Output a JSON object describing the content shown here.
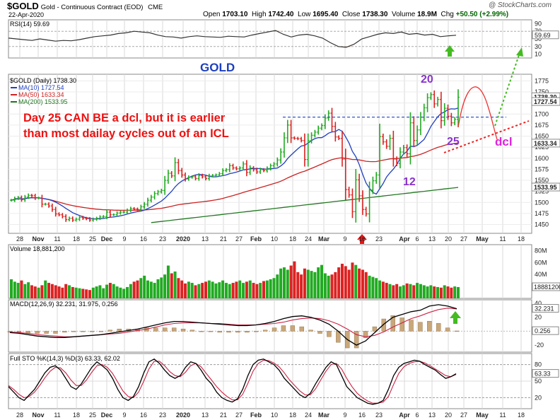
{
  "header": {
    "symbol": "$GOLD",
    "description": "Gold - Continuous Contract (EOD)",
    "exchange": "CME",
    "date": "22-Apr-2020",
    "open_label": "Open",
    "open": "1703.10",
    "high_label": "High",
    "high": "1742.40",
    "low_label": "Low",
    "low": "1695.40",
    "close_label": "Close",
    "close": "1738.30",
    "volume_label": "Volume",
    "volume": "18.9M",
    "chg_label": "Chg",
    "chg": "+50.50 (+2.99%)",
    "brand": "@ StockCharts.com"
  },
  "colors": {
    "up_bar": "#22aa22",
    "down_bar": "#dd2222",
    "ma10": "#1f3fbf",
    "ma50": "#cc2222",
    "ma200": "#227722",
    "annotation_red": "#ee1111",
    "annotation_purple": "#8833cc",
    "annotation_magenta": "#dd22dd",
    "annotation_green": "#44bb22"
  },
  "chart_data": [
    {
      "type": "line",
      "title": "RSI(14) 59.69",
      "ylim": [
        0,
        100
      ],
      "yticks": [
        10,
        30,
        50,
        70,
        90
      ],
      "last_value": "59.69",
      "values": [
        52,
        50,
        48,
        46,
        50,
        47,
        44,
        46,
        45,
        48,
        52,
        56,
        58,
        60,
        64,
        66,
        70,
        68,
        66,
        60,
        56,
        55,
        52,
        56,
        58,
        56,
        55,
        54,
        57,
        56,
        55,
        60,
        64,
        68,
        72,
        62,
        55,
        60,
        62,
        58,
        52,
        40,
        30,
        28,
        36,
        50,
        56,
        62,
        66,
        64,
        68,
        62,
        64,
        60,
        62,
        56,
        58,
        59.69
      ]
    },
    {
      "type": "ohlc",
      "title": "$GOLD (Daily) 1738.30",
      "ylim": [
        1430,
        1790
      ],
      "yticks": [
        1450,
        1475,
        1500,
        1525,
        1550,
        1575,
        1600,
        1625,
        1650,
        1675,
        1700,
        1725,
        1750,
        1775
      ],
      "x_labels": [
        "28",
        "Nov",
        "11",
        "18",
        "25",
        "Dec",
        "9",
        "16",
        "23",
        "2020",
        "13",
        "21",
        "27",
        "Feb",
        "10",
        "18",
        "24",
        "Mar",
        "9",
        "16",
        "23",
        "Apr",
        "6",
        "13",
        "20",
        "27",
        "May",
        "11",
        "18"
      ],
      "closes": [
        1505,
        1509,
        1511,
        1506,
        1512,
        1516,
        1515,
        1510,
        1510,
        1496,
        1496,
        1492,
        1484,
        1474,
        1472,
        1468,
        1461,
        1464,
        1460,
        1462,
        1466,
        1464,
        1463,
        1460,
        1462,
        1464,
        1467,
        1468,
        1478,
        1472,
        1472,
        1476,
        1478,
        1478,
        1482,
        1486,
        1485,
        1484,
        1490,
        1496,
        1505,
        1512,
        1520,
        1524,
        1527,
        1550,
        1566,
        1560,
        1590,
        1572,
        1562,
        1553,
        1557,
        1558,
        1554,
        1561,
        1558,
        1554,
        1560,
        1561,
        1562,
        1565,
        1572,
        1574,
        1583,
        1578,
        1576,
        1578,
        1587,
        1568,
        1578,
        1574,
        1569,
        1574,
        1572,
        1577,
        1583,
        1587,
        1596,
        1614,
        1646,
        1675,
        1646,
        1645,
        1644,
        1640,
        1597,
        1640,
        1652,
        1659,
        1668,
        1674,
        1691,
        1702,
        1672,
        1648,
        1645,
        1598,
        1529,
        1517,
        1479,
        1551,
        1515,
        1484,
        1474,
        1528,
        1549,
        1562,
        1649,
        1637,
        1627,
        1645,
        1598,
        1588,
        1614,
        1624,
        1610,
        1680,
        1640,
        1664,
        1693,
        1714,
        1737,
        1744,
        1723,
        1733,
        1685,
        1713,
        1695,
        1680,
        1688,
        1738
      ],
      "legend": [
        {
          "name": "MA(10) 1727.54",
          "value": 1727.54
        },
        {
          "name": "MA(50) 1633.34",
          "value": 1633.34
        },
        {
          "name": "MA(200) 1533.95",
          "value": 1533.95
        }
      ],
      "price_label": "1738.30",
      "ma_labels": [
        "1727.54",
        "1633.34",
        "1533.95"
      ],
      "resistance": 1693,
      "annotations": {
        "gold": "GOLD",
        "note_line1": "Day 25 CAN BE a dcl, but it is earlier",
        "note_line2": "than most dailay cycles out of an ICL",
        "num20": "20",
        "num12": "12",
        "num25": "25",
        "dcl": "dcl"
      }
    },
    {
      "type": "bar",
      "title": "Volume 18,881,200",
      "ylim": [
        0,
        90
      ],
      "yticks_labels": [
        "20M",
        "40M",
        "60M",
        "80M"
      ],
      "last_value": "18881200",
      "values": [
        32,
        28,
        26,
        30,
        24,
        27,
        22,
        20,
        18,
        22,
        30,
        26,
        24,
        22,
        20,
        18,
        24,
        22,
        19,
        18,
        17,
        16,
        15,
        14,
        18,
        20,
        22,
        17,
        23,
        26,
        24,
        20,
        18,
        16,
        19,
        24,
        28,
        30,
        34,
        38,
        30,
        28,
        26,
        32,
        35,
        40,
        55,
        42,
        45,
        34,
        30,
        25,
        28,
        26,
        22,
        24,
        26,
        28,
        30,
        28,
        25,
        27,
        30,
        26,
        24,
        26,
        28,
        30,
        26,
        28,
        30,
        26,
        24,
        26,
        29,
        30,
        32,
        34,
        40,
        50,
        52,
        48,
        55,
        62,
        44,
        40,
        50,
        48,
        46,
        44,
        52,
        56,
        42,
        38,
        40,
        44,
        52,
        58,
        54,
        48,
        60,
        56,
        50,
        48,
        44,
        38,
        36,
        34,
        30,
        28,
        26,
        24,
        22,
        24,
        20,
        22,
        25,
        24,
        22,
        26,
        24,
        22,
        20,
        22,
        20,
        19,
        18,
        22,
        20,
        18,
        20,
        19
      ]
    },
    {
      "type": "line",
      "title": "MACD(12,26,9) 32.231, 31.975, 0.256",
      "ylim": [
        -30,
        45
      ],
      "yticks": [
        -20,
        0,
        20,
        40
      ],
      "macd_last": "32.231",
      "hist_last": "0.256",
      "macd": [
        -2,
        -3,
        -5,
        -7,
        -8,
        -9,
        -9,
        -8,
        -7,
        -6,
        -5,
        -3,
        -1,
        1,
        3,
        6,
        9,
        12,
        14,
        14,
        13,
        12,
        11,
        10,
        9,
        8,
        8,
        9,
        11,
        14,
        18,
        21,
        22,
        20,
        16,
        10,
        0,
        -12,
        -20,
        -14,
        -2,
        10,
        20,
        24,
        28,
        30,
        36,
        38,
        36,
        32.231
      ],
      "signal": [
        -1,
        -2,
        -3,
        -5,
        -6,
        -7,
        -8,
        -8,
        -7,
        -6,
        -5,
        -4,
        -3,
        -1,
        1,
        3,
        6,
        9,
        11,
        12,
        12,
        12,
        11,
        11,
        10,
        9,
        9,
        9,
        10,
        11,
        13,
        16,
        18,
        19,
        18,
        15,
        10,
        3,
        -5,
        -8,
        -6,
        -1,
        6,
        12,
        18,
        22,
        27,
        31,
        33,
        31.975
      ]
    },
    {
      "type": "line",
      "title": "Full STO %K(14,3) %D(3) 63.33, 62.02",
      "ylim": [
        0,
        100
      ],
      "yticks": [
        20,
        50,
        80
      ],
      "k_last": "63.33",
      "k": [
        40,
        30,
        20,
        15,
        25,
        35,
        50,
        65,
        75,
        78,
        70,
        55,
        40,
        35,
        45,
        60,
        75,
        85,
        78,
        70,
        55,
        35,
        20,
        15,
        22,
        40,
        65,
        85,
        90,
        82,
        70,
        60,
        55,
        60,
        75,
        85,
        82,
        70,
        55,
        45,
        30,
        20,
        15,
        12,
        18,
        35,
        60,
        80,
        88,
        90,
        85,
        80,
        70,
        55,
        45,
        35,
        25,
        20,
        28,
        45,
        60,
        75,
        85,
        80,
        60,
        40,
        30,
        20,
        15,
        10,
        8,
        10,
        15,
        35,
        60,
        75,
        82,
        85,
        88,
        86,
        80,
        75,
        70,
        62,
        55,
        58,
        63.33
      ],
      "d": [
        42,
        35,
        26,
        20,
        22,
        30,
        42,
        56,
        68,
        75,
        74,
        65,
        52,
        42,
        42,
        52,
        66,
        78,
        80,
        75,
        64,
        48,
        32,
        22,
        20,
        30,
        50,
        72,
        86,
        86,
        78,
        67,
        60,
        58,
        66,
        78,
        82,
        76,
        64,
        52,
        40,
        30,
        22,
        16,
        16,
        26,
        46,
        68,
        82,
        88,
        87,
        83,
        76,
        65,
        52,
        42,
        32,
        25,
        25,
        36,
        52,
        68,
        80,
        82,
        72,
        55,
        40,
        28,
        20,
        14,
        10,
        10,
        12,
        22,
        44,
        64,
        76,
        82,
        85,
        86,
        83,
        78,
        72,
        66,
        60,
        58,
        62.02
      ]
    }
  ]
}
